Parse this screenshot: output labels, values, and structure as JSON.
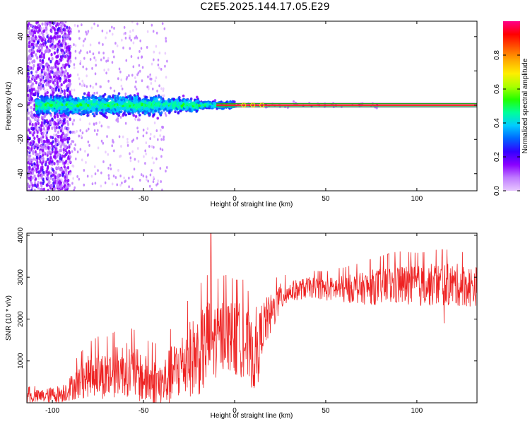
{
  "title": "C2E5.2025.144.17.05.E29",
  "colors": {
    "snr_line": "#ee2222",
    "center_line": "#ff1a1a",
    "center_line_edge": "#22aa22",
    "colorbar_stops": [
      "#e8c8ff",
      "#c07cff",
      "#8a00ff",
      "#3300ff",
      "#0066ff",
      "#00ccff",
      "#00ff99",
      "#22ff00",
      "#aaff00",
      "#ffee00",
      "#ffaa00",
      "#ff5500",
      "#ff0000",
      "#ff0088"
    ]
  },
  "chart_data": [
    {
      "type": "heatmap",
      "name": "spectrogram",
      "xlabel": "Height of straight line (km)",
      "ylabel": "Frequency (Hz)",
      "xlim": [
        -114,
        133
      ],
      "ylim": [
        -50,
        49
      ],
      "xticks": [
        -100,
        -50,
        0,
        50,
        100
      ],
      "xtick_labels": [
        "-100",
        "-50",
        "0",
        "50",
        "100"
      ],
      "yticks": [
        -40,
        -20,
        0,
        20,
        40
      ],
      "ytick_labels": [
        "-40",
        "-20",
        "0",
        "20",
        "40"
      ],
      "colorbar": {
        "label": "Normalized spectral amplitude",
        "ticks": [
          0.0,
          0.2,
          0.4,
          0.6,
          0.8
        ],
        "tick_labels": [
          "0.0",
          "0.2",
          "0.4",
          "0.6",
          "0.8"
        ],
        "range": [
          0,
          1
        ]
      },
      "features": {
        "carrier_frequency_hz": 0,
        "carrier_visible_from_km": -10,
        "broadband_noise_until_km": -90,
        "scattered_noise_until_km": -37
      }
    },
    {
      "type": "line",
      "name": "snr",
      "xlabel": "Height of straight line (km)",
      "ylabel": "SNR (10 * v/v)",
      "xlim": [
        -114,
        133
      ],
      "ylim": [
        0,
        4050
      ],
      "xticks": [
        -100,
        -50,
        0,
        50,
        100
      ],
      "xtick_labels": [
        "-100",
        "-50",
        "0",
        "50",
        "100"
      ],
      "yticks": [
        1000,
        2000,
        3000,
        4000
      ],
      "ytick_labels": [
        "1000",
        "2000",
        "3000",
        "4000"
      ],
      "series": [
        {
          "x": [
            -114,
            -105,
            -95,
            -90,
            -85,
            -80,
            -75,
            -70,
            -65,
            -60,
            -55,
            -50,
            -45,
            -40,
            -35,
            -30,
            -25,
            -20,
            -15,
            -13,
            -10,
            -5,
            0,
            5,
            10,
            12,
            15,
            20,
            25,
            30,
            35,
            40,
            45,
            50,
            55,
            60,
            65,
            70,
            75,
            80,
            85,
            90,
            95,
            100,
            105,
            110,
            115,
            120,
            125,
            130,
            133
          ],
          "mean": [
            130,
            160,
            220,
            360,
            500,
            640,
            700,
            620,
            760,
            820,
            700,
            560,
            480,
            420,
            650,
            850,
            1050,
            1150,
            1350,
            1500,
            1500,
            1700,
            1500,
            1500,
            1100,
            1000,
            1800,
            2100,
            2500,
            2650,
            2700,
            2750,
            2750,
            2700,
            2730,
            2700,
            2740,
            2730,
            2760,
            2780,
            2800,
            2820,
            2800,
            2780,
            2800,
            2820,
            2830,
            2820,
            2800,
            2780,
            2790
          ],
          "spread": [
            150,
            170,
            220,
            300,
            420,
            500,
            550,
            600,
            600,
            650,
            650,
            600,
            600,
            600,
            700,
            800,
            900,
            1000,
            1100,
            1100,
            900,
            850,
            900,
            900,
            800,
            800,
            650,
            500,
            350,
            250,
            250,
            250,
            250,
            270,
            300,
            330,
            350,
            380,
            420,
            450,
            480,
            500,
            500,
            500,
            500,
            520,
            520,
            520,
            500,
            500,
            480
          ]
        }
      ],
      "spikes": [
        {
          "x": -13,
          "y": 4050
        },
        {
          "x": -15,
          "y": 3050
        },
        {
          "x": 12,
          "y": 700
        },
        {
          "x": 115,
          "y": 1900
        }
      ]
    }
  ]
}
